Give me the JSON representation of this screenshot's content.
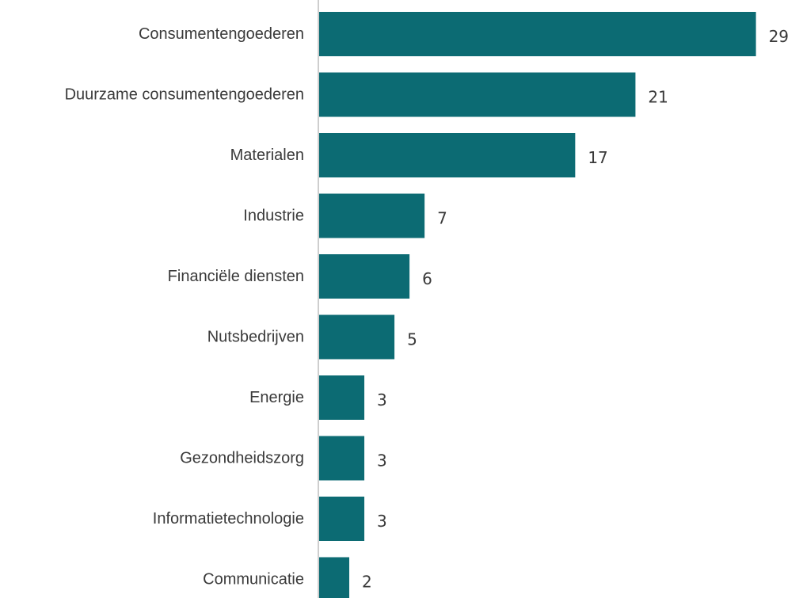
{
  "colors": {
    "bar": "#0c6b73",
    "axis": "#bdbdbd",
    "text": "#3a3a3a"
  },
  "chart_data": {
    "type": "bar",
    "orientation": "horizontal",
    "title": "",
    "xlabel": "",
    "ylabel": "",
    "grid": false,
    "xlim": [
      0,
      29
    ],
    "categories": [
      "Consumentengoederen",
      "Duurzame consumentengoederen",
      "Materialen",
      "Industrie",
      "Financiële diensten",
      "Nutsbedrijven",
      "Energie",
      "Gezondheidszorg",
      "Informatietechnologie",
      "Communicatie"
    ],
    "values": [
      29,
      21,
      17,
      7,
      6,
      5,
      3,
      3,
      3,
      2
    ],
    "value_labels": [
      "29",
      "21",
      "17",
      "7",
      "6",
      "5",
      "3",
      "3",
      "3",
      "2"
    ]
  }
}
